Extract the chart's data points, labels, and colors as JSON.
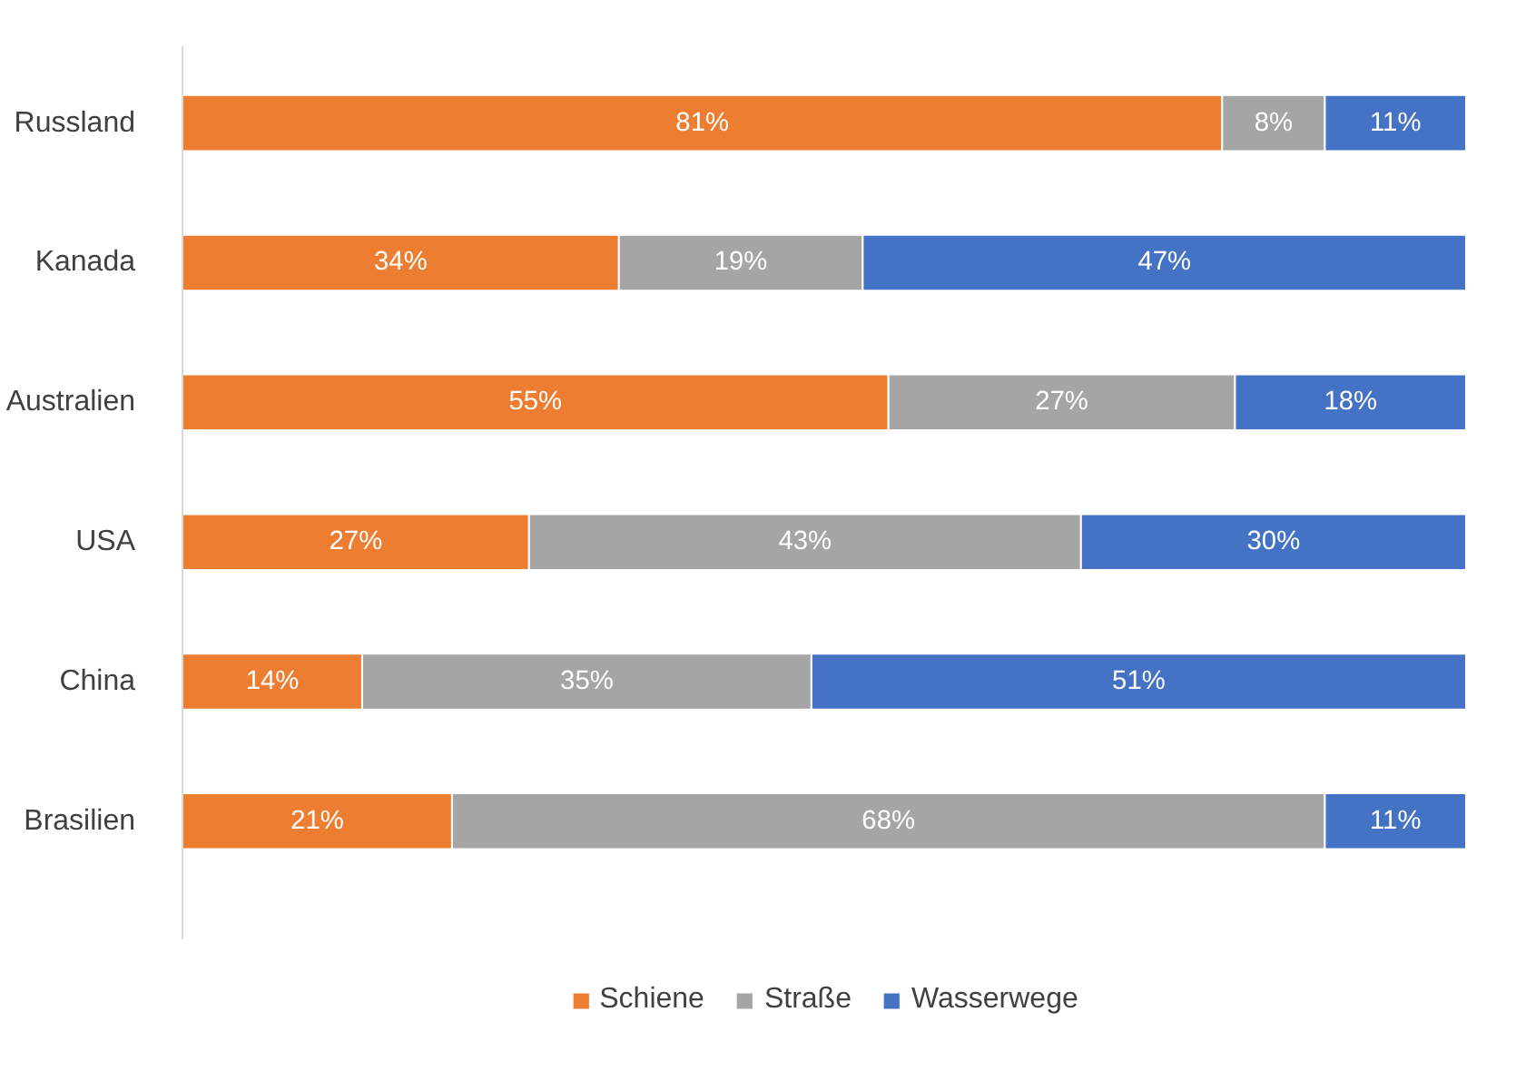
{
  "chart_data": {
    "type": "bar",
    "orientation": "horizontal",
    "stacked": true,
    "categories": [
      "Russland",
      "Kanada",
      "Australien",
      "USA",
      "China",
      "Brasilien"
    ],
    "series": [
      {
        "name": "Schiene",
        "color": "#ed7d31",
        "values": [
          81,
          34,
          55,
          27,
          14,
          21
        ],
        "value_labels": [
          "81%",
          "34%",
          "55%",
          "27%",
          "14%",
          "21%"
        ]
      },
      {
        "name": "Straße",
        "color": "#a5a5a5",
        "values": [
          8,
          19,
          27,
          43,
          35,
          68
        ],
        "value_labels": [
          "8%",
          "19%",
          "27%",
          "43%",
          "35%",
          "68%"
        ]
      },
      {
        "name": "Wasserwege",
        "color": "#4472c4",
        "values": [
          11,
          47,
          18,
          30,
          51,
          11
        ],
        "value_labels": [
          "11%",
          "47%",
          "18%",
          "30%",
          "51%",
          "11%"
        ]
      }
    ],
    "tick_labels": "y",
    "legend": "bottom"
  }
}
